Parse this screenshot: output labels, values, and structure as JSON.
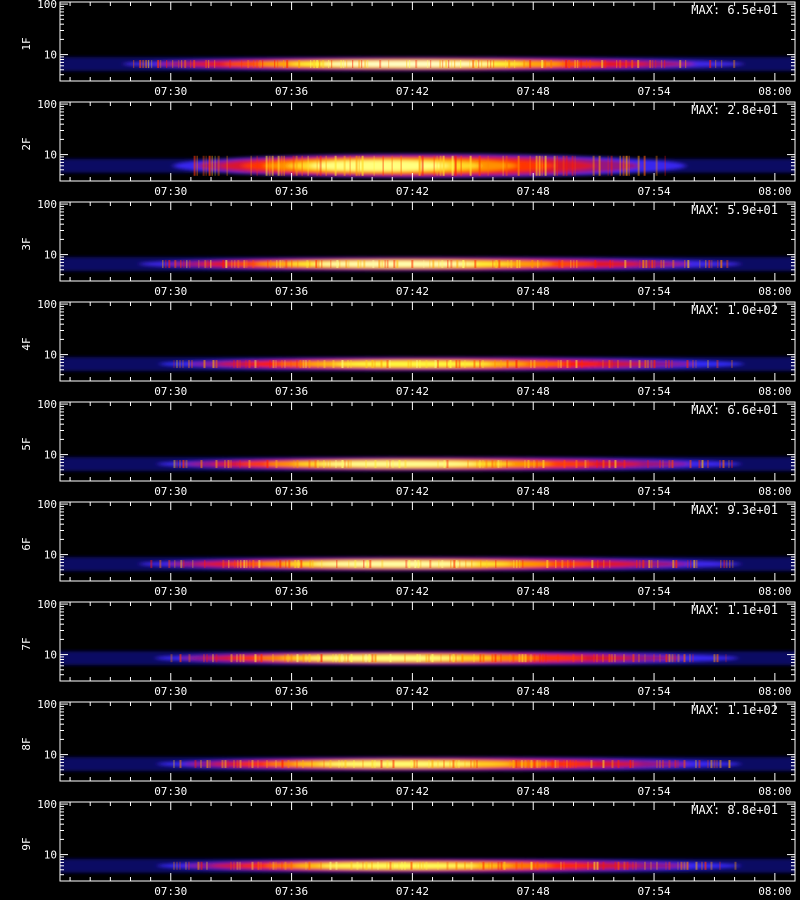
{
  "chart_data": {
    "type": "heatmap",
    "x_tick_labels": [
      "07:30",
      "07:36",
      "07:42",
      "07:48",
      "07:54",
      "08:00"
    ],
    "y_tick_labels": [
      "10",
      "100"
    ],
    "y_scale": "log",
    "colormap": [
      "#000000",
      "#0a0a9a",
      "#2a2aff",
      "#b01060",
      "#ff1a00",
      "#ff9a00",
      "#ffff40",
      "#ffffff"
    ],
    "panels": [
      {
        "label": "1F",
        "max_label": "MAX: 6.5e+01",
        "max_value": 65,
        "band": {
          "start": "07:26",
          "peak": "07:42",
          "end": "08:01",
          "center_y": 6.5,
          "intensity": 0.95
        }
      },
      {
        "label": "2F",
        "max_label": "MAX: 2.8e+01",
        "max_value": 28,
        "band": {
          "start": "07:29",
          "peak": "07:40",
          "end": "07:58",
          "center_y": 6.0,
          "intensity": 0.88
        }
      },
      {
        "label": "3F",
        "max_label": "MAX: 5.9e+01",
        "max_value": 59,
        "band": {
          "start": "07:27",
          "peak": "07:41",
          "end": "08:01",
          "center_y": 6.5,
          "intensity": 0.93
        }
      },
      {
        "label": "4F",
        "max_label": "MAX: 1.0e+02",
        "max_value": 100,
        "band": {
          "start": "07:28",
          "peak": "07:42",
          "end": "08:01",
          "center_y": 6.5,
          "intensity": 0.82
        }
      },
      {
        "label": "5F",
        "max_label": "MAX: 6.6e+01",
        "max_value": 66,
        "band": {
          "start": "07:28",
          "peak": "07:41",
          "end": "08:01",
          "center_y": 6.5,
          "intensity": 0.9
        }
      },
      {
        "label": "6F",
        "max_label": "MAX: 9.3e+01",
        "max_value": 93,
        "band": {
          "start": "07:27",
          "peak": "07:41",
          "end": "08:01",
          "center_y": 6.5,
          "intensity": 0.92
        }
      },
      {
        "label": "7F",
        "max_label": "MAX: 1.1e+01",
        "max_value": 11,
        "band": {
          "start": "07:28",
          "peak": "07:40",
          "end": "08:01",
          "center_y": 8.5,
          "intensity": 0.88
        }
      },
      {
        "label": "8F",
        "max_label": "MAX: 1.1e+02",
        "max_value": 110,
        "band": {
          "start": "07:28",
          "peak": "07:41",
          "end": "08:01",
          "center_y": 6.5,
          "intensity": 0.87
        }
      },
      {
        "label": "9F",
        "max_label": "MAX: 8.8e+01",
        "max_value": 88,
        "band": {
          "start": "07:28",
          "peak": "07:41",
          "end": "08:01",
          "center_y": 6.0,
          "intensity": 0.85
        }
      }
    ]
  }
}
